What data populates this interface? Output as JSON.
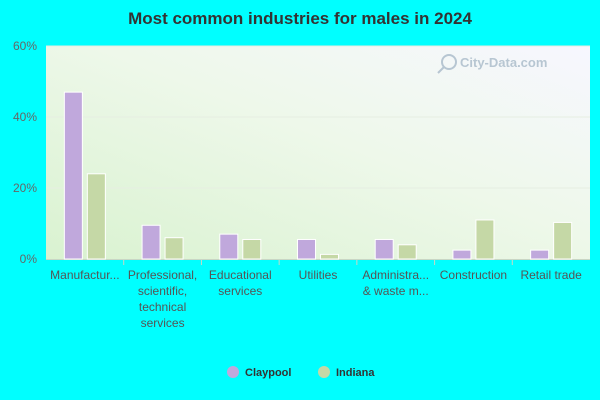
{
  "chart_data": {
    "type": "bar",
    "title": "Most common industries for males in 2024",
    "categories": [
      [
        "Manufactur..."
      ],
      [
        "Professional,",
        "scientific,",
        "technical",
        "services"
      ],
      [
        "Educational",
        "services"
      ],
      [
        "Utilities"
      ],
      [
        "Administra...",
        "& waste m..."
      ],
      [
        "Construction"
      ],
      [
        "Retail trade"
      ]
    ],
    "series": [
      {
        "name": "Claypool",
        "color": "#c0a8dc",
        "values": [
          47,
          9.5,
          7,
          5.5,
          5.5,
          2.5,
          2.5
        ]
      },
      {
        "name": "Indiana",
        "color": "#c5d8a6",
        "values": [
          24,
          6,
          5.5,
          1.3,
          4,
          11,
          10.3
        ]
      }
    ],
    "ylim": [
      0,
      60
    ],
    "yticks": [
      "0%",
      "20%",
      "40%",
      "60%"
    ],
    "ytick_values": [
      0,
      20,
      40,
      60
    ],
    "grid": true,
    "legend_position": "bottom-center"
  },
  "watermark": "City-Data.com"
}
